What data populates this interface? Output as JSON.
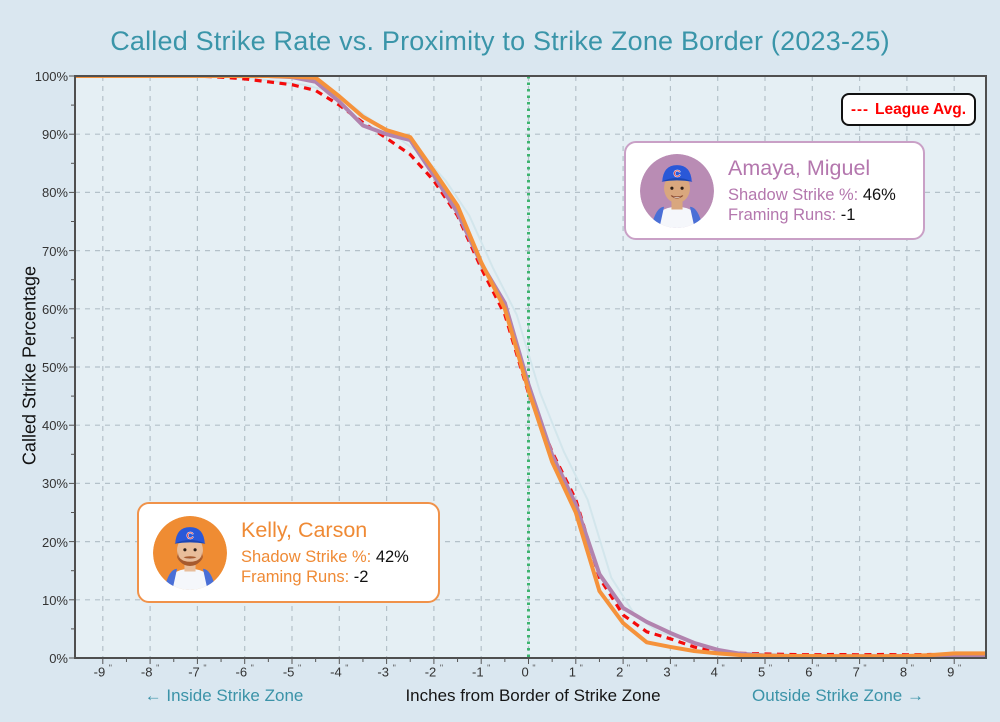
{
  "title": "Called Strike Rate vs. Proximity to Strike Zone Border (2023-25)",
  "colors": {
    "page_background": "#dae7f0",
    "plot_background": "#e5eff4",
    "grid": "#b4c1c9",
    "frame": "#4f4f4f",
    "title_teal": "#3a95a9",
    "caption_teal": "#3b93a8",
    "kelly_orange": "#f5923b",
    "amaya_purple": "#b283ae",
    "league_red": "#f40b0b",
    "zone_green": "#3db46f"
  },
  "legend": {
    "dash_prefix": "---",
    "label": "League Avg."
  },
  "axes": {
    "y_label": "Called Strike Percentage",
    "x_label": "Inches from Border of Strike Zone",
    "left_caption": "← Inside Strike Zone",
    "right_caption": "Outside Strike Zone →",
    "y_ticks": [
      "100%",
      "90%",
      "80%",
      "70%",
      "60%",
      "50%",
      "40%",
      "30%",
      "20%",
      "10%",
      "0%"
    ],
    "x_ticks": [
      "-9",
      "-8",
      "-7",
      "-6",
      "-5",
      "-4",
      "-3",
      "-2",
      "-1",
      "0",
      "1",
      "2",
      "3",
      "4",
      "5",
      "6",
      "7",
      "8",
      "9"
    ],
    "x_tick_unit": "\""
  },
  "cards": {
    "amaya": {
      "name": "Amaya, Miguel",
      "shadow_label": "Shadow Strike %:",
      "shadow_value": "46%",
      "framing_label": "Framing Runs:",
      "framing_value": "-1",
      "accent": "#b283ae"
    },
    "kelly": {
      "name": "Kelly, Carson",
      "shadow_label": "Shadow Strike %:",
      "shadow_value": "42%",
      "framing_label": "Framing Runs:",
      "framing_value": "-2",
      "accent": "#f5923b"
    }
  },
  "chart_data": {
    "type": "line",
    "title": "Called Strike Rate vs. Proximity to Strike Zone Border (2023-25)",
    "xlabel": "Inches from Border of Strike Zone",
    "ylabel": "Called Strike Percentage",
    "xlim": [
      -9.75,
      9.75
    ],
    "ylim": [
      0,
      100
    ],
    "grid": true,
    "legend_position": "top-right",
    "zone_border_x": 0,
    "x": [
      -9,
      -8.5,
      -8,
      -7.5,
      -7,
      -6.5,
      -6,
      -5.5,
      -5,
      -4.5,
      -4,
      -3.5,
      -3,
      -2.5,
      -2,
      -1.5,
      -1,
      -0.5,
      0,
      0.5,
      1,
      1.5,
      2,
      2.5,
      3,
      3.5,
      4,
      4.5,
      5,
      5.5,
      6,
      6.5,
      7,
      7.5,
      8,
      8.5,
      9
    ],
    "series": [
      {
        "name": "Kelly, Carson",
        "color": "#f5923b",
        "style": "solid",
        "values": [
          100,
          100,
          100,
          100,
          100,
          100,
          100,
          100,
          99.9,
          99.7,
          96.5,
          93,
          90.7,
          89.5,
          83.7,
          77.7,
          68,
          60,
          46,
          33.7,
          25,
          11.5,
          6,
          2.7,
          1.9,
          1.2,
          0.8,
          0.5,
          0.4,
          0.35,
          0.35,
          0.3,
          0.3,
          0.3,
          0.35,
          0.5,
          0.8
        ]
      },
      {
        "name": "Amaya, Miguel",
        "color": "#b283ae",
        "style": "solid",
        "values": [
          100,
          100,
          100,
          100,
          100,
          100,
          100,
          100,
          99.8,
          99,
          95.6,
          91.5,
          90,
          89,
          82.9,
          76.5,
          67.8,
          61,
          47,
          34.9,
          26.4,
          14.4,
          8.6,
          6.2,
          4.3,
          2.6,
          1.4,
          0.7,
          0.45,
          0.35,
          0.3,
          0.3,
          0.3,
          0.3,
          0.3,
          0.3,
          0.3
        ]
      },
      {
        "name": "League Avg.",
        "color": "#f40b0b",
        "style": "dashed",
        "values": [
          100,
          100,
          100,
          100,
          100,
          99.8,
          99.5,
          99,
          98.5,
          97.5,
          95,
          92,
          89.3,
          86.5,
          82,
          76,
          67,
          59,
          45.5,
          35.4,
          27.2,
          13.8,
          7.4,
          4.5,
          3.3,
          1.9,
          0.95,
          0.8,
          0.7,
          0.6,
          0.55,
          0.6,
          0.55,
          0.6,
          0.55,
          0.6,
          0.55
        ]
      }
    ],
    "ghost_line": {
      "based_on": "League Avg.",
      "x_offset": 0.25,
      "color": "#d3e6ec"
    }
  }
}
